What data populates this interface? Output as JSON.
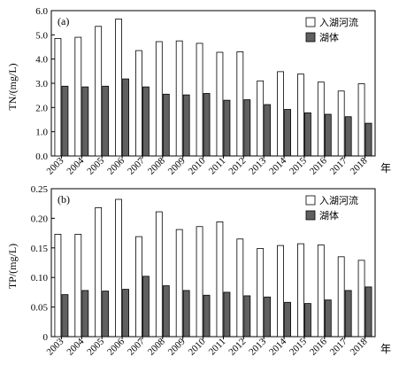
{
  "chart_data": [
    {
      "type": "bar",
      "panel_label": "(a)",
      "ylabel": "TN/(mg/L)",
      "xunit": "年",
      "ylim": [
        0,
        6.0
      ],
      "yticks": [
        "0.0",
        "1.0",
        "2.0",
        "3.0",
        "4.0",
        "5.0",
        "6.0"
      ],
      "ytick_values": [
        0,
        1,
        2,
        3,
        4,
        5,
        6
      ],
      "categories": [
        "2003",
        "2004",
        "2005",
        "2006",
        "2007",
        "2008",
        "2009",
        "2010",
        "2011",
        "2012",
        "2013",
        "2014",
        "2015",
        "2016",
        "2017",
        "2018"
      ],
      "legend_position": "top-right",
      "series": [
        {
          "name": "入湖河流",
          "color": "#ffffff",
          "values": [
            4.85,
            4.9,
            5.35,
            5.65,
            4.35,
            4.72,
            4.75,
            4.65,
            4.28,
            4.3,
            3.1,
            3.48,
            3.38,
            3.05,
            2.68,
            2.98
          ]
        },
        {
          "name": "湖体",
          "color": "#606060",
          "values": [
            2.88,
            2.85,
            2.88,
            3.18,
            2.85,
            2.55,
            2.52,
            2.58,
            2.3,
            2.32,
            2.12,
            1.92,
            1.78,
            1.72,
            1.62,
            1.35
          ]
        }
      ]
    },
    {
      "type": "bar",
      "panel_label": "(b)",
      "ylabel": "TP/(mg/L)",
      "xunit": "年",
      "ylim": [
        0,
        0.25
      ],
      "yticks": [
        "0",
        "0.05",
        "0.10",
        "0.15",
        "0.20",
        "0.25"
      ],
      "ytick_values": [
        0,
        0.05,
        0.1,
        0.15,
        0.2,
        0.25
      ],
      "categories": [
        "2003",
        "2004",
        "2005",
        "2006",
        "2007",
        "2008",
        "2009",
        "2010",
        "2011",
        "2012",
        "2013",
        "2014",
        "2015",
        "2016",
        "2017",
        "2018"
      ],
      "legend_position": "top-right",
      "series": [
        {
          "name": "入湖河流",
          "color": "#ffffff",
          "values": [
            0.173,
            0.173,
            0.218,
            0.232,
            0.169,
            0.211,
            0.181,
            0.186,
            0.194,
            0.165,
            0.149,
            0.154,
            0.157,
            0.155,
            0.135,
            0.129
          ]
        },
        {
          "name": "湖体",
          "color": "#606060",
          "values": [
            0.071,
            0.078,
            0.077,
            0.08,
            0.102,
            0.086,
            0.078,
            0.07,
            0.075,
            0.069,
            0.067,
            0.058,
            0.056,
            0.062,
            0.078,
            0.084
          ]
        }
      ]
    }
  ]
}
